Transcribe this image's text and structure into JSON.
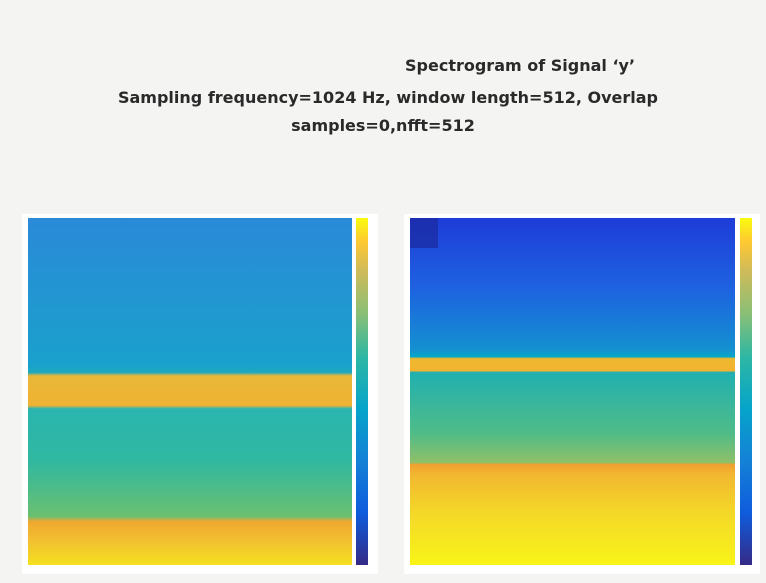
{
  "slide": {
    "title": "Spectrogram  of Signal ‘y’",
    "subtitle_lines": [
      "Sampling frequency=1024 Hz, window length=512, Overlap",
      "samples=0,nfft=512"
    ]
  }
}
